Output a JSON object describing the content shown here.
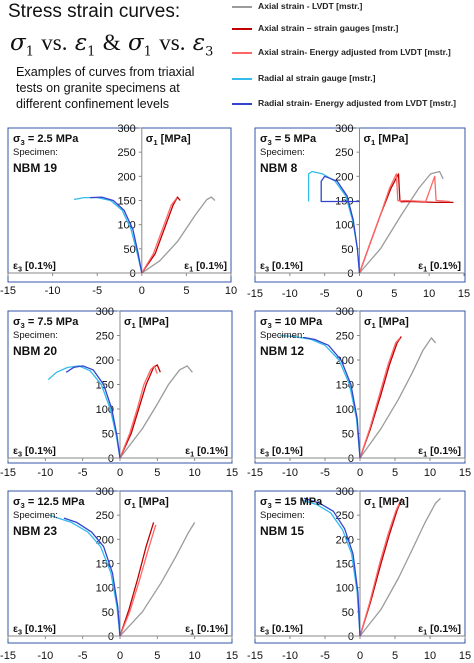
{
  "header": {
    "title": "Stress strain curves:",
    "formula": {
      "sigma": "σ",
      "eps": "ε",
      "sub1": "1",
      "sub3": "3",
      "vs": "vs.",
      "amp": "&"
    },
    "description": "Examples of curves from triaxial tests on granite specimens at different confinement levels"
  },
  "legend": [
    {
      "label": "Axial strain - LVDT [mstr.]",
      "color": "#9b9b9b"
    },
    {
      "label": "Axial strain – strain gauges [mstr.]",
      "color": "#c00000"
    },
    {
      "label": "Axial strain- Energy adjusted from LVDT [mstr.]",
      "color": "#ff6666"
    },
    {
      "label": "Radial al strain gauge [mstr.]",
      "color": "#33bbee"
    },
    {
      "label": "Radial strain- Energy adjusted from LVDT [mstr.]",
      "color": "#3344cc"
    }
  ],
  "chart_data": [
    {
      "type": "line",
      "confinement_label": "σ3 = 2.5 MPa",
      "specimen_label": "Specimen:",
      "specimen": "NBM 19",
      "ylabel": "σ1 [MPa]",
      "xlabel_left": "ε3 [0.1%]",
      "xlabel_right": "ε1 [0.1%]",
      "xlim": [
        -15,
        10
      ],
      "ylim": [
        0,
        300
      ],
      "xticks": [
        -15,
        -10,
        -5,
        0,
        5,
        10
      ],
      "yticks": [
        0,
        50,
        100,
        150,
        200,
        250,
        300
      ],
      "series": [
        {
          "color": "#9b9b9b",
          "x": [
            0,
            2,
            4,
            6,
            7.3,
            7.8,
            8.2
          ],
          "y": [
            0,
            25,
            65,
            120,
            152,
            157,
            150
          ]
        },
        {
          "color": "#c00000",
          "x": [
            0,
            1.5,
            2.5,
            3.5,
            4,
            4.3
          ],
          "y": [
            0,
            40,
            90,
            140,
            157,
            150
          ]
        },
        {
          "color": "#ff6666",
          "x": [
            0,
            1.3,
            2.4,
            3.3,
            3.9
          ],
          "y": [
            0,
            40,
            95,
            140,
            155
          ]
        },
        {
          "color": "#33bbee",
          "x": [
            0,
            -0.5,
            -1.2,
            -2.2,
            -3.5,
            -5,
            -6.5,
            -7.6
          ],
          "y": [
            0,
            40,
            90,
            130,
            150,
            156,
            156,
            152
          ]
        },
        {
          "color": "#3344cc",
          "x": [
            0,
            -0.4,
            -1,
            -2,
            -3.2,
            -4.5,
            -5.8
          ],
          "y": [
            0,
            40,
            90,
            130,
            150,
            157,
            156
          ]
        }
      ]
    },
    {
      "type": "line",
      "confinement_label": "σ3 = 5 MPa",
      "specimen_label": "Specimen:",
      "specimen": "NBM 8",
      "ylabel": "σ1 [MPa]",
      "xlabel_left": "ε3 [0.1%]",
      "xlabel_right": "ε1 [0.1%]",
      "xlim": [
        -15,
        15
      ],
      "ylim": [
        0,
        300
      ],
      "xticks": [
        -15,
        -10,
        -5,
        0,
        5,
        10,
        15
      ],
      "yticks": [
        0,
        50,
        100,
        150,
        200,
        250,
        300
      ],
      "series": [
        {
          "color": "#9b9b9b",
          "x": [
            0,
            3,
            6,
            8.5,
            10.2,
            11.5,
            12
          ],
          "y": [
            0,
            50,
            120,
            175,
            205,
            210,
            195
          ]
        },
        {
          "color": "#c00000",
          "x": [
            0,
            1.5,
            3,
            4.5,
            5.6,
            5.8,
            6,
            7,
            11,
            13.5
          ],
          "y": [
            0,
            60,
            120,
            175,
            205,
            150,
            147,
            148,
            146,
            146
          ]
        },
        {
          "color": "#ff6666",
          "x": [
            0,
            1.5,
            3,
            4.3,
            5.3,
            5.5,
            5.7,
            6.5,
            9.5,
            10.8,
            11,
            13
          ],
          "y": [
            0,
            60,
            120,
            175,
            205,
            150,
            149,
            150,
            148,
            200,
            150,
            148
          ]
        },
        {
          "color": "#33bbee",
          "x": [
            0,
            -0.3,
            -1,
            -2,
            -3.5,
            -5.3,
            -6.8,
            -7.3,
            -7.3
          ],
          "y": [
            0,
            50,
            110,
            160,
            190,
            205,
            210,
            205,
            148
          ]
        },
        {
          "color": "#3344cc",
          "x": [
            0,
            -0.3,
            -0.9,
            -1.8,
            -3.2,
            -5,
            -5.5,
            -5.5,
            -3,
            0
          ],
          "y": [
            0,
            50,
            110,
            160,
            190,
            200,
            190,
            148,
            148,
            148
          ]
        }
      ]
    },
    {
      "type": "line",
      "confinement_label": "σ3 = 7.5 MPa",
      "specimen_label": "Specimen:",
      "specimen": "NBM 20",
      "ylabel": "σ1 [MPa]",
      "xlabel_left": "ε3 [0.1%]",
      "xlabel_right": "ε1 [0.1%]",
      "xlim": [
        -15,
        15
      ],
      "ylim": [
        0,
        300
      ],
      "xticks": [
        -15,
        -10,
        -5,
        0,
        5,
        10,
        15
      ],
      "yticks": [
        0,
        50,
        100,
        150,
        200,
        250,
        300
      ],
      "series": [
        {
          "color": "#9b9b9b",
          "x": [
            0,
            3,
            5,
            6.5,
            8,
            9,
            9.7
          ],
          "y": [
            0,
            60,
            110,
            150,
            180,
            188,
            175
          ]
        },
        {
          "color": "#c00000",
          "x": [
            0,
            1.5,
            2.5,
            3.5,
            4.5,
            5,
            5.4
          ],
          "y": [
            0,
            50,
            100,
            150,
            185,
            190,
            175
          ]
        },
        {
          "color": "#ff6666",
          "x": [
            0,
            1.3,
            2.3,
            3.2,
            4.1,
            4.6,
            5
          ],
          "y": [
            0,
            50,
            100,
            150,
            180,
            188,
            172
          ]
        },
        {
          "color": "#33bbee",
          "x": [
            0,
            -0.5,
            -1.3,
            -2.5,
            -4,
            -5.5,
            -7,
            -8.5,
            -9.6
          ],
          "y": [
            0,
            45,
            100,
            150,
            178,
            188,
            185,
            175,
            160
          ]
        },
        {
          "color": "#3344cc",
          "x": [
            0,
            -0.4,
            -1.1,
            -2.2,
            -3.6,
            -5,
            -6.2,
            -7.2
          ],
          "y": [
            0,
            45,
            100,
            150,
            180,
            188,
            185,
            175
          ]
        }
      ]
    },
    {
      "type": "line",
      "confinement_label": "σ3 = 10 MPa",
      "specimen_label": "Specimen:",
      "specimen": "NBM 12",
      "ylabel": "σ1 [MPa]",
      "xlabel_left": "ε3 [0.1%]",
      "xlabel_right": "ε1 [0.1%]",
      "xlim": [
        -15,
        15
      ],
      "ylim": [
        0,
        300
      ],
      "xticks": [
        -15,
        -10,
        -5,
        0,
        5,
        10,
        15
      ],
      "yticks": [
        0,
        50,
        100,
        150,
        200,
        250,
        300
      ],
      "series": [
        {
          "color": "#9b9b9b",
          "x": [
            0,
            3,
            5.5,
            7.5,
            9,
            10.2,
            10.8
          ],
          "y": [
            0,
            60,
            120,
            175,
            220,
            245,
            235
          ]
        },
        {
          "color": "#c00000",
          "x": [
            0,
            1.5,
            3,
            4.2,
            5.3,
            5.9
          ],
          "y": [
            0,
            60,
            130,
            190,
            235,
            248
          ]
        },
        {
          "color": "#ff6666",
          "x": [
            0,
            1.4,
            2.8,
            4,
            5.1,
            5.7
          ],
          "y": [
            0,
            60,
            130,
            190,
            235,
            245
          ]
        },
        {
          "color": "#33bbee",
          "x": [
            0,
            -0.5,
            -1.5,
            -3,
            -5,
            -7,
            -9.5,
            -11.5
          ],
          "y": [
            0,
            80,
            150,
            200,
            230,
            242,
            248,
            250
          ]
        },
        {
          "color": "#3344cc",
          "x": [
            0,
            -0.4,
            -1.3,
            -2.7,
            -4.5,
            -6.5,
            -8
          ],
          "y": [
            0,
            80,
            150,
            200,
            230,
            242,
            246
          ]
        }
      ]
    },
    {
      "type": "line",
      "confinement_label": "σ3 = 12.5 MPa",
      "specimen_label": "Specimen:",
      "specimen": "NBM 23",
      "ylabel": "σ1 [MPa]",
      "xlabel_left": "ε3 [0.1%]",
      "xlabel_right": "ε1 [0.1%]",
      "xlim": [
        -15,
        15
      ],
      "ylim": [
        0,
        300
      ],
      "xticks": [
        -15,
        -10,
        -5,
        0,
        5,
        10,
        15
      ],
      "yticks": [
        0,
        50,
        100,
        150,
        200,
        250,
        300
      ],
      "series": [
        {
          "color": "#9b9b9b",
          "x": [
            0,
            3,
            5.5,
            7.5,
            9.2,
            10
          ],
          "y": [
            0,
            50,
            110,
            165,
            215,
            235
          ]
        },
        {
          "color": "#c00000",
          "x": [
            0,
            1.2,
            2.4,
            3.5,
            4.5
          ],
          "y": [
            0,
            55,
            120,
            185,
            235
          ]
        },
        {
          "color": "#ff6666",
          "x": [
            0,
            1.3,
            2.6,
            3.8,
            4.8
          ],
          "y": [
            0,
            50,
            115,
            180,
            230
          ]
        },
        {
          "color": "#33bbee",
          "x": [
            0,
            -0.4,
            -1.2,
            -2.6,
            -4.3,
            -6.5,
            -8.5,
            -9.4
          ],
          "y": [
            0,
            60,
            130,
            185,
            215,
            235,
            245,
            250
          ]
        },
        {
          "color": "#3344cc",
          "x": [
            0,
            -0.3,
            -1,
            -2.2,
            -3.8,
            -5.8,
            -7.5
          ],
          "y": [
            0,
            60,
            130,
            185,
            215,
            235,
            244
          ]
        }
      ]
    },
    {
      "type": "line",
      "confinement_label": "σ3 = 15 MPa",
      "specimen_label": "Specimen:",
      "specimen": "NBM 15",
      "ylabel": "σ1 [MPa]",
      "xlabel_left": "ε3 [0.1%]",
      "xlabel_right": "ε1 [0.1%]",
      "xlim": [
        -15,
        15
      ],
      "ylim": [
        0,
        300
      ],
      "xticks": [
        -15,
        -10,
        -5,
        0,
        5,
        10,
        15
      ],
      "yticks": [
        0,
        50,
        100,
        150,
        200,
        250,
        300
      ],
      "series": [
        {
          "color": "#9b9b9b",
          "x": [
            0,
            3,
            5.5,
            7.5,
            9.3,
            10.8,
            11.5
          ],
          "y": [
            0,
            55,
            120,
            180,
            235,
            275,
            285
          ]
        },
        {
          "color": "#c00000",
          "x": [
            0,
            1.5,
            3,
            4.2,
            5.3,
            6
          ],
          "y": [
            0,
            70,
            150,
            210,
            260,
            285
          ]
        },
        {
          "color": "#ff6666",
          "x": [
            0,
            1.4,
            2.8,
            4,
            5.1,
            5.8
          ],
          "y": [
            0,
            70,
            150,
            210,
            258,
            280
          ]
        },
        {
          "color": "#33bbee",
          "x": [
            0,
            -0.4,
            -1.2,
            -2.5,
            -4.2,
            -6.2,
            -8.5
          ],
          "y": [
            0,
            90,
            170,
            220,
            255,
            272,
            282
          ]
        },
        {
          "color": "#3344cc",
          "x": [
            0,
            -0.3,
            -1,
            -2.2,
            -3.8,
            -5.8,
            -8
          ],
          "y": [
            0,
            90,
            170,
            222,
            258,
            275,
            285
          ]
        }
      ]
    }
  ]
}
